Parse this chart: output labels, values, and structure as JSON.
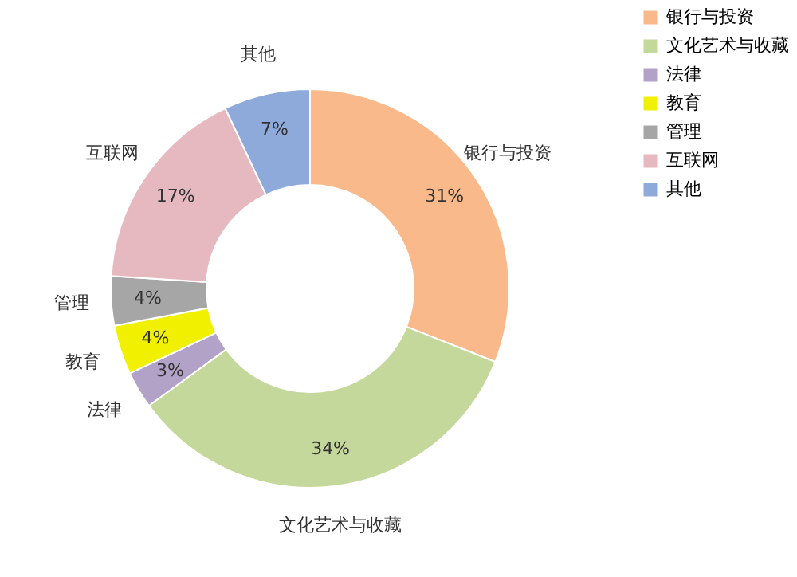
{
  "chart_data": {
    "type": "donut",
    "categories": [
      "银行与投资",
      "文化艺术与收藏",
      "法律",
      "教育",
      "管理",
      "互联网",
      "其他"
    ],
    "values": [
      31,
      34,
      3,
      4,
      4,
      17,
      7
    ],
    "value_labels": [
      "31%",
      "34%",
      "3%",
      "4%",
      "4%",
      "17%",
      "7%"
    ],
    "colors": [
      "#f9b98a",
      "#c5d89b",
      "#b3a2c7",
      "#f0f000",
      "#a6a6a6",
      "#e6b9c0",
      "#8eaadb"
    ],
    "legend": "right"
  }
}
